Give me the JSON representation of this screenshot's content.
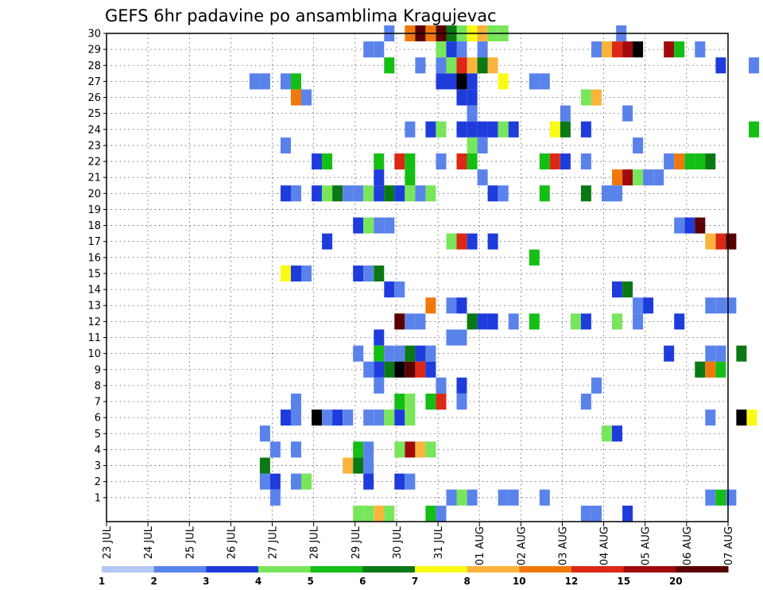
{
  "chart_data": {
    "type": "heatmap",
    "title": "GEFS 6hr padavine po ansamblima Kragujevac",
    "x_tick_labels": [
      "23 JUL",
      "24 JUL",
      "25 JUL",
      "26 JUL",
      "27 JUL",
      "28 JUL",
      "29 JUL",
      "30 JUL",
      "31 JUL",
      "01 AUG",
      "02 AUG",
      "03 AUG",
      "04 AUG",
      "05 AUG",
      "06 AUG",
      "07 AUG"
    ],
    "x_range_days": [
      0,
      15
    ],
    "y_range": [
      0,
      30
    ],
    "y_ticks": [
      1,
      2,
      3,
      4,
      5,
      6,
      7,
      8,
      9,
      10,
      11,
      12,
      13,
      14,
      15,
      16,
      17,
      18,
      19,
      20,
      21,
      22,
      23,
      24,
      25,
      26,
      27,
      28,
      29,
      30
    ],
    "grid": true,
    "legend_placement": "bottom",
    "color_levels": [
      1,
      2,
      3,
      4,
      5,
      6,
      7,
      8,
      10,
      12,
      15,
      20
    ],
    "legend_labels": [
      "1",
      "2",
      "3",
      "4",
      "5",
      "6",
      "7",
      "8",
      "10",
      "12",
      "15",
      "20"
    ],
    "colors": [
      "#b4c8f5",
      "#5a82eb",
      "#1e3cdc",
      "#78e65a",
      "#14be14",
      "#0a7814",
      "#fafa14",
      "#fab43c",
      "#f0780a",
      "#dc2814",
      "#a00a0a",
      "#5a0000"
    ],
    "cell_width_days": 0.25,
    "cells": [
      [
        6.7,
        30,
        1
      ],
      [
        7.2,
        30,
        8
      ],
      [
        7.45,
        30,
        11
      ],
      [
        7.7,
        30,
        8
      ],
      [
        7.95,
        30,
        11
      ],
      [
        8.2,
        30,
        5
      ],
      [
        8.45,
        30,
        3
      ],
      [
        8.7,
        30,
        6
      ],
      [
        8.95,
        30,
        7
      ],
      [
        9.2,
        30,
        3
      ],
      [
        9.45,
        30,
        3
      ],
      [
        12.3,
        30,
        1
      ],
      [
        6.2,
        29,
        1
      ],
      [
        6.45,
        29,
        1
      ],
      [
        7.95,
        29,
        3
      ],
      [
        8.2,
        29,
        2
      ],
      [
        8.45,
        29,
        1
      ],
      [
        8.95,
        29,
        1
      ],
      [
        11.7,
        29,
        1
      ],
      [
        11.95,
        29,
        7
      ],
      [
        12.2,
        29,
        9
      ],
      [
        12.45,
        29,
        10
      ],
      [
        12.7,
        29,
        12
      ],
      [
        13.45,
        29,
        10
      ],
      [
        13.7,
        29,
        4
      ],
      [
        14.2,
        29,
        1
      ],
      [
        6.7,
        28,
        4
      ],
      [
        7.45,
        28,
        1
      ],
      [
        7.95,
        28,
        1
      ],
      [
        8.2,
        28,
        3
      ],
      [
        8.45,
        28,
        9
      ],
      [
        8.7,
        28,
        7
      ],
      [
        8.95,
        28,
        5
      ],
      [
        9.2,
        28,
        7
      ],
      [
        14.7,
        28,
        2
      ],
      [
        15.5,
        28,
        1
      ],
      [
        3.45,
        27,
        1
      ],
      [
        3.7,
        27,
        1
      ],
      [
        4.2,
        27,
        1
      ],
      [
        4.45,
        27,
        4
      ],
      [
        7.95,
        27,
        2
      ],
      [
        8.2,
        27,
        2
      ],
      [
        8.45,
        27,
        12
      ],
      [
        8.7,
        27,
        2
      ],
      [
        9.45,
        27,
        6
      ],
      [
        10.2,
        27,
        1
      ],
      [
        10.45,
        27,
        1
      ],
      [
        4.45,
        26,
        8
      ],
      [
        4.7,
        26,
        1
      ],
      [
        8.45,
        26,
        2
      ],
      [
        8.7,
        26,
        2
      ],
      [
        11.45,
        26,
        3
      ],
      [
        11.7,
        26,
        7
      ],
      [
        8.7,
        25,
        1
      ],
      [
        10.95,
        25,
        1
      ],
      [
        12.45,
        25,
        1
      ],
      [
        7.2,
        24,
        1
      ],
      [
        7.7,
        24,
        2
      ],
      [
        7.95,
        24,
        3
      ],
      [
        8.45,
        24,
        2
      ],
      [
        8.7,
        24,
        2
      ],
      [
        8.95,
        24,
        2
      ],
      [
        9.2,
        24,
        2
      ],
      [
        9.45,
        24,
        3
      ],
      [
        9.7,
        24,
        2
      ],
      [
        10.7,
        24,
        6
      ],
      [
        10.95,
        24,
        5
      ],
      [
        11.45,
        24,
        2
      ],
      [
        15.5,
        24,
        4
      ],
      [
        4.2,
        23,
        1
      ],
      [
        8.7,
        23,
        3
      ],
      [
        8.95,
        23,
        1
      ],
      [
        12.7,
        23,
        1
      ],
      [
        4.95,
        22,
        2
      ],
      [
        5.2,
        22,
        4
      ],
      [
        6.45,
        22,
        4
      ],
      [
        6.95,
        22,
        9
      ],
      [
        7.2,
        22,
        4
      ],
      [
        7.95,
        22,
        1
      ],
      [
        8.45,
        22,
        9
      ],
      [
        8.7,
        22,
        4
      ],
      [
        10.45,
        22,
        4
      ],
      [
        10.7,
        22,
        9
      ],
      [
        10.95,
        22,
        2
      ],
      [
        11.45,
        22,
        1
      ],
      [
        13.45,
        22,
        1
      ],
      [
        13.7,
        22,
        8
      ],
      [
        13.95,
        22,
        4
      ],
      [
        14.2,
        22,
        4
      ],
      [
        14.45,
        22,
        5
      ],
      [
        6.45,
        21,
        2
      ],
      [
        7.2,
        21,
        4
      ],
      [
        8.95,
        21,
        1
      ],
      [
        12.2,
        21,
        8
      ],
      [
        12.45,
        21,
        10
      ],
      [
        12.7,
        21,
        3
      ],
      [
        12.95,
        21,
        1
      ],
      [
        13.2,
        21,
        1
      ],
      [
        4.2,
        20,
        2
      ],
      [
        4.45,
        20,
        1
      ],
      [
        4.95,
        20,
        2
      ],
      [
        5.2,
        20,
        3
      ],
      [
        5.45,
        20,
        5
      ],
      [
        5.7,
        20,
        1
      ],
      [
        5.95,
        20,
        1
      ],
      [
        6.2,
        20,
        3
      ],
      [
        6.45,
        20,
        2
      ],
      [
        6.7,
        20,
        5
      ],
      [
        6.95,
        20,
        2
      ],
      [
        7.2,
        20,
        3
      ],
      [
        7.45,
        20,
        1
      ],
      [
        7.7,
        20,
        3
      ],
      [
        9.2,
        20,
        2
      ],
      [
        9.45,
        20,
        1
      ],
      [
        10.45,
        20,
        4
      ],
      [
        11.45,
        20,
        5
      ],
      [
        11.95,
        20,
        1
      ],
      [
        12.2,
        20,
        1
      ],
      [
        5.95,
        18,
        2
      ],
      [
        6.2,
        18,
        3
      ],
      [
        6.45,
        18,
        1
      ],
      [
        6.7,
        18,
        1
      ],
      [
        13.7,
        18,
        1
      ],
      [
        13.95,
        18,
        2
      ],
      [
        14.2,
        18,
        11
      ],
      [
        5.2,
        17,
        2
      ],
      [
        8.2,
        17,
        3
      ],
      [
        8.45,
        17,
        9
      ],
      [
        8.7,
        17,
        2
      ],
      [
        9.2,
        17,
        2
      ],
      [
        14.45,
        17,
        7
      ],
      [
        14.7,
        17,
        9
      ],
      [
        14.95,
        17,
        11
      ],
      [
        10.2,
        16,
        4
      ],
      [
        4.2,
        15,
        6
      ],
      [
        4.45,
        15,
        2
      ],
      [
        4.7,
        15,
        1
      ],
      [
        5.95,
        15,
        2
      ],
      [
        6.2,
        15,
        1
      ],
      [
        6.45,
        15,
        5
      ],
      [
        6.7,
        14,
        2
      ],
      [
        6.95,
        14,
        1
      ],
      [
        12.2,
        14,
        2
      ],
      [
        12.45,
        14,
        5
      ],
      [
        7.7,
        13,
        8
      ],
      [
        8.2,
        13,
        1
      ],
      [
        8.45,
        13,
        2
      ],
      [
        12.7,
        13,
        1
      ],
      [
        12.95,
        13,
        2
      ],
      [
        14.45,
        13,
        1
      ],
      [
        14.7,
        13,
        1
      ],
      [
        14.95,
        13,
        1
      ],
      [
        6.95,
        12,
        11
      ],
      [
        7.2,
        12,
        1
      ],
      [
        7.45,
        12,
        1
      ],
      [
        8.7,
        12,
        5
      ],
      [
        8.95,
        12,
        2
      ],
      [
        9.2,
        12,
        2
      ],
      [
        9.7,
        12,
        1
      ],
      [
        10.2,
        12,
        4
      ],
      [
        11.2,
        12,
        3
      ],
      [
        11.45,
        12,
        2
      ],
      [
        12.2,
        12,
        3
      ],
      [
        12.7,
        12,
        1
      ],
      [
        13.7,
        12,
        2
      ],
      [
        6.45,
        11,
        2
      ],
      [
        8.2,
        11,
        1
      ],
      [
        8.45,
        11,
        1
      ],
      [
        5.95,
        10,
        1
      ],
      [
        6.45,
        10,
        4
      ],
      [
        6.7,
        10,
        1
      ],
      [
        6.95,
        10,
        1
      ],
      [
        7.2,
        10,
        5
      ],
      [
        7.45,
        10,
        2
      ],
      [
        7.7,
        10,
        1
      ],
      [
        13.45,
        10,
        2
      ],
      [
        14.45,
        10,
        1
      ],
      [
        14.7,
        10,
        1
      ],
      [
        15.2,
        10,
        5
      ],
      [
        6.2,
        9,
        1
      ],
      [
        6.45,
        9,
        2
      ],
      [
        6.7,
        9,
        5
      ],
      [
        6.95,
        9,
        12
      ],
      [
        7.2,
        9,
        11
      ],
      [
        7.45,
        9,
        9
      ],
      [
        7.7,
        9,
        2
      ],
      [
        14.2,
        9,
        5
      ],
      [
        14.45,
        9,
        8
      ],
      [
        14.7,
        9,
        4
      ],
      [
        6.45,
        8,
        1
      ],
      [
        7.95,
        8,
        1
      ],
      [
        8.45,
        8,
        2
      ],
      [
        11.7,
        8,
        1
      ],
      [
        4.45,
        7,
        1
      ],
      [
        6.95,
        7,
        4
      ],
      [
        7.2,
        7,
        3
      ],
      [
        7.7,
        7,
        4
      ],
      [
        7.95,
        7,
        9
      ],
      [
        8.45,
        7,
        1
      ],
      [
        11.45,
        7,
        1
      ],
      [
        4.2,
        6,
        2
      ],
      [
        4.45,
        6,
        1
      ],
      [
        4.95,
        6,
        12
      ],
      [
        5.2,
        6,
        1
      ],
      [
        5.45,
        6,
        2
      ],
      [
        5.7,
        6,
        1
      ],
      [
        6.2,
        6,
        1
      ],
      [
        6.45,
        6,
        1
      ],
      [
        6.7,
        6,
        3
      ],
      [
        6.95,
        6,
        2
      ],
      [
        7.2,
        6,
        3
      ],
      [
        14.45,
        6,
        1
      ],
      [
        15.2,
        6,
        12
      ],
      [
        15.45,
        6,
        6
      ],
      [
        3.7,
        5,
        1
      ],
      [
        11.95,
        5,
        3
      ],
      [
        12.2,
        5,
        2
      ],
      [
        3.95,
        4,
        1
      ],
      [
        4.45,
        4,
        1
      ],
      [
        5.95,
        4,
        4
      ],
      [
        6.2,
        4,
        1
      ],
      [
        6.95,
        4,
        3
      ],
      [
        7.2,
        4,
        10
      ],
      [
        7.45,
        4,
        7
      ],
      [
        7.7,
        4,
        3
      ],
      [
        3.7,
        3,
        5
      ],
      [
        5.7,
        3,
        7
      ],
      [
        5.95,
        3,
        5
      ],
      [
        6.2,
        3,
        1
      ],
      [
        3.7,
        2,
        1
      ],
      [
        3.95,
        2,
        2
      ],
      [
        4.45,
        2,
        1
      ],
      [
        4.7,
        2,
        3
      ],
      [
        6.2,
        2,
        2
      ],
      [
        6.95,
        2,
        2
      ],
      [
        7.2,
        2,
        1
      ],
      [
        3.95,
        1,
        1
      ],
      [
        8.2,
        1,
        1
      ],
      [
        8.45,
        1,
        3
      ],
      [
        8.7,
        1,
        1
      ],
      [
        9.45,
        1,
        1
      ],
      [
        9.7,
        1,
        1
      ],
      [
        10.45,
        1,
        1
      ],
      [
        14.45,
        1,
        1
      ],
      [
        14.7,
        1,
        4
      ],
      [
        14.95,
        1,
        1
      ],
      [
        5.95,
        0,
        3
      ],
      [
        6.2,
        0,
        3
      ],
      [
        6.45,
        0,
        7
      ],
      [
        6.7,
        0,
        3
      ],
      [
        7.7,
        0,
        4
      ],
      [
        7.95,
        0,
        1
      ],
      [
        11.45,
        0,
        1
      ],
      [
        11.7,
        0,
        1
      ],
      [
        12.45,
        0,
        2
      ]
    ]
  }
}
